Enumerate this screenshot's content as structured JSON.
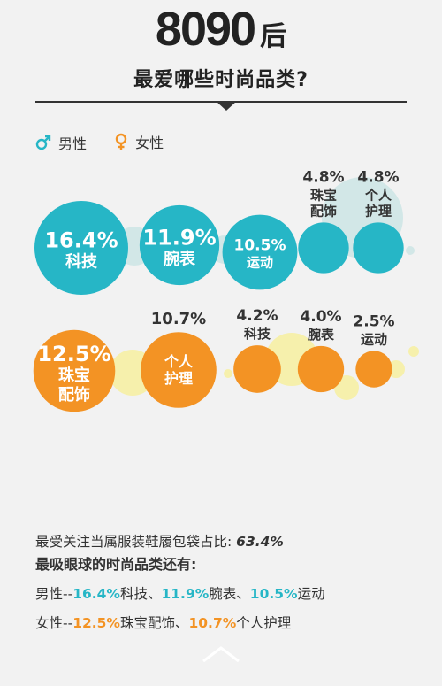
{
  "header": {
    "title_number": "8090",
    "title_suffix": "后",
    "subtitle": "最爱哪些时尚品类?"
  },
  "legend": {
    "male": "男性",
    "female": "女性"
  },
  "colors": {
    "male": "#26b6c6",
    "female": "#f39324",
    "male_deco": "#cde5e5",
    "female_deco": "#f6efa4"
  },
  "chart_data": {
    "type": "bubble",
    "unit": "%",
    "series": [
      {
        "name": "男性",
        "points": [
          {
            "value": 16.4,
            "label": "科技"
          },
          {
            "value": 11.9,
            "label": "腕表"
          },
          {
            "value": 10.5,
            "label": "运动"
          },
          {
            "value": 4.8,
            "label": "珠宝\n配饰"
          },
          {
            "value": 4.8,
            "label": "个人\n护理"
          }
        ]
      },
      {
        "name": "女性",
        "points": [
          {
            "value": 12.5,
            "label": "珠宝\n配饰"
          },
          {
            "value": 10.7,
            "label": "个人\n护理"
          },
          {
            "value": 4.2,
            "label": "科技"
          },
          {
            "value": 4.0,
            "label": "腕表"
          },
          {
            "value": 2.5,
            "label": "运动"
          }
        ]
      }
    ]
  },
  "summary": {
    "line1_text": "最受关注当属服装鞋履包袋占比:",
    "line1_value": "63.4%",
    "line2": "最吸眼球的时尚品类还有:",
    "line3": {
      "prefix": "男性--",
      "v1": "16.4%",
      "t1": "科技、",
      "v2": "11.9%",
      "t2": "腕表、",
      "v3": "10.5%",
      "t3": "运动"
    },
    "line4": {
      "prefix": "女性--",
      "v1": "12.5%",
      "t1": "珠宝配饰、",
      "v2": "10.7%",
      "t2": "个人护理"
    }
  }
}
